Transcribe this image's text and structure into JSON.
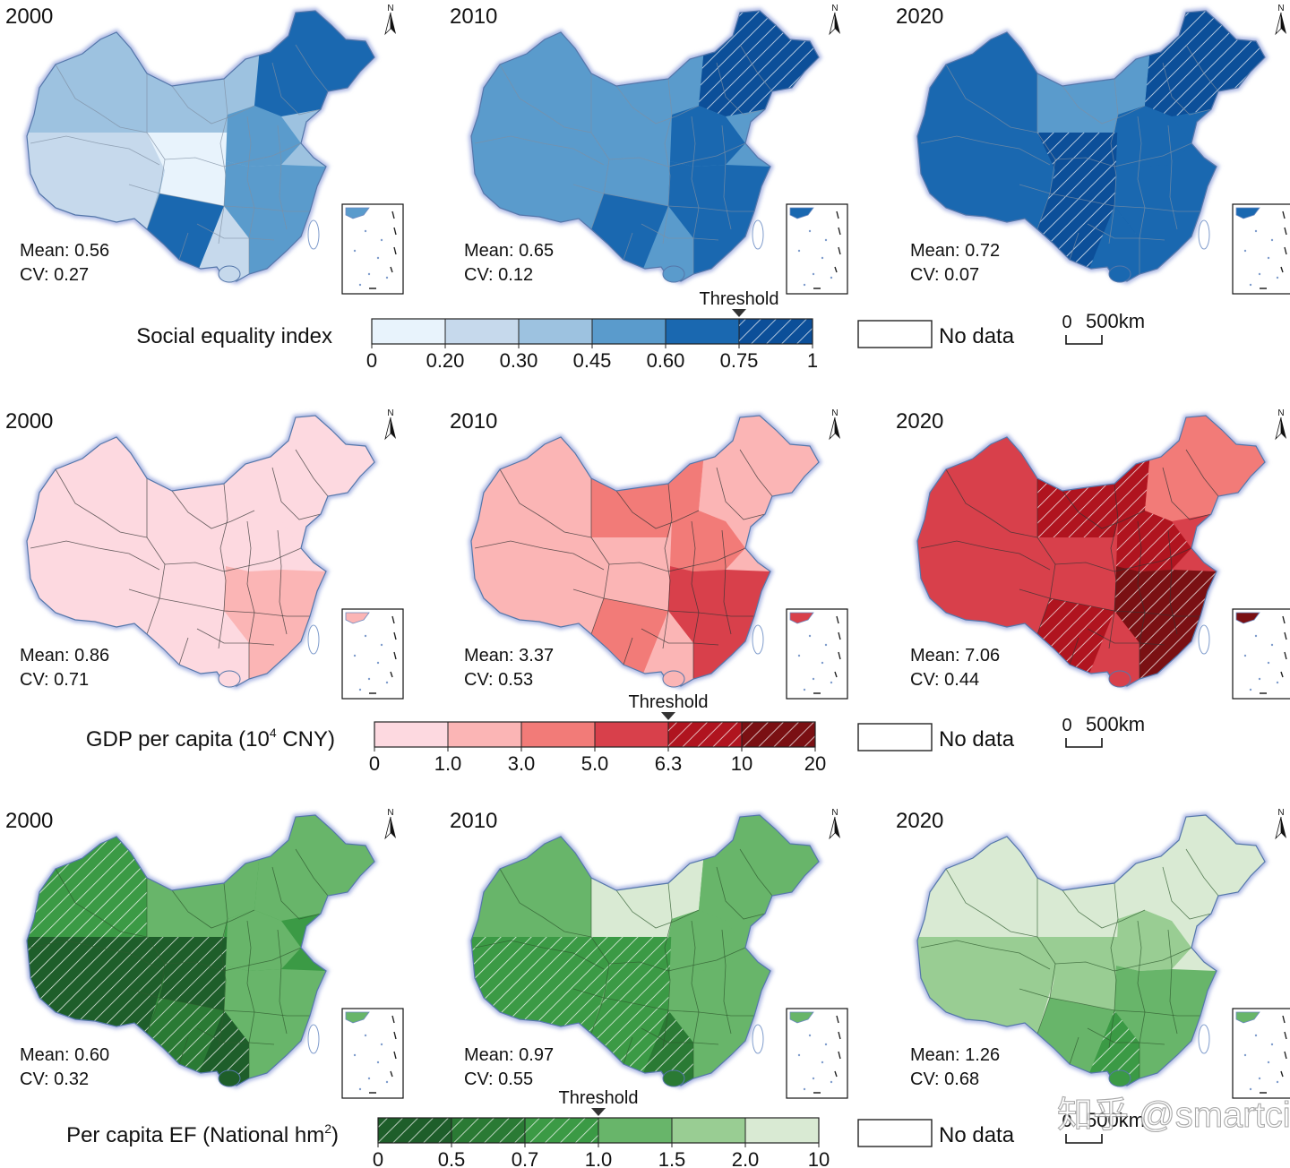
{
  "rows": [
    {
      "id": "social",
      "palette": [
        "#e8f3fc",
        "#c6d9ec",
        "#9dc2e0",
        "#5a9bcc",
        "#1a68b0",
        "#0c4f99"
      ],
      "hatch_from": 5,
      "colors": {
        "outline": "#5577aa",
        "inner": "#7f8fa3"
      },
      "panels": [
        {
          "year": "2000",
          "mean": "Mean: 0.56",
          "cv": "CV: 0.27",
          "fill": [
            2,
            1,
            0,
            2,
            3,
            4,
            4,
            3,
            1
          ]
        },
        {
          "year": "2010",
          "mean": "Mean: 0.65",
          "cv": "CV: 0.12",
          "fill": [
            3,
            3,
            3,
            3,
            4,
            5,
            4,
            4,
            3
          ]
        },
        {
          "year": "2020",
          "mean": "Mean: 0.72",
          "cv": "CV: 0.07",
          "fill": [
            4,
            4,
            5,
            3,
            4,
            5,
            5,
            4,
            4
          ]
        }
      ],
      "legend": {
        "title": "Social equality index",
        "ticks": [
          "0",
          "0.20",
          "0.30",
          "0.45",
          "0.60",
          "0.75",
          "1"
        ],
        "threshold_label": "Threshold",
        "threshold_index": 5
      },
      "no_data": "No data",
      "scale_zero": "0",
      "scale_label": "500km"
    },
    {
      "id": "gdp",
      "palette": [
        "#fdd9e0",
        "#fbb5b5",
        "#f27b78",
        "#d8404b",
        "#b0141f",
        "#7a1013"
      ],
      "hatch_from": 4,
      "colors": {
        "outline": "#5577aa",
        "inner": "#333333"
      },
      "panels": [
        {
          "year": "2000",
          "mean": "Mean: 0.86",
          "cv": "CV: 0.71",
          "fill": [
            0,
            0,
            0,
            0,
            0,
            0,
            0,
            1,
            0
          ]
        },
        {
          "year": "2010",
          "mean": "Mean: 3.37",
          "cv": "CV: 0.53",
          "fill": [
            1,
            1,
            1,
            2,
            2,
            1,
            2,
            3,
            1
          ]
        },
        {
          "year": "2020",
          "mean": "Mean: 7.06",
          "cv": "CV: 0.44",
          "fill": [
            3,
            3,
            3,
            4,
            4,
            2,
            4,
            5,
            3
          ]
        }
      ],
      "legend": {
        "title": "GDP per capita (10",
        "title_sup": "4",
        "title_end": " CNY)",
        "ticks": [
          "0",
          "1.0",
          "3.0",
          "5.0",
          "6.3",
          "10",
          "20"
        ],
        "threshold_label": "Threshold",
        "threshold_index": 4
      },
      "no_data": "No data",
      "scale_zero": "0",
      "scale_label": "500km"
    },
    {
      "id": "ef",
      "palette": [
        "#1e5e2a",
        "#2a7a34",
        "#3b9a45",
        "#68b56a",
        "#99cd93",
        "#d9ead3"
      ],
      "hatch_to": 2,
      "colors": {
        "outline": "#5577aa",
        "inner": "#2f5b2f"
      },
      "panels": [
        {
          "year": "2000",
          "mean": "Mean: 0.60",
          "cv": "CV: 0.32",
          "fill": [
            2,
            0,
            0,
            3,
            3,
            3,
            1,
            3,
            0
          ]
        },
        {
          "year": "2010",
          "mean": "Mean: 0.97",
          "cv": "CV: 0.55",
          "fill": [
            3,
            2,
            2,
            5,
            3,
            3,
            2,
            3,
            1
          ]
        },
        {
          "year": "2020",
          "mean": "Mean: 1.26",
          "cv": "CV: 0.68",
          "fill": [
            5,
            4,
            4,
            5,
            4,
            5,
            3,
            3,
            2
          ]
        }
      ],
      "legend": {
        "title": "Per capita EF (National hm",
        "title_sup": "2",
        "title_end": ")",
        "ticks": [
          "0",
          "0.5",
          "0.7",
          "1.0",
          "1.5",
          "2.0",
          "10"
        ],
        "threshold_label": "Threshold",
        "threshold_index": 3
      },
      "no_data": "No data",
      "scale_zero": "0",
      "scale_label": "500km"
    }
  ],
  "north_label": "N",
  "watermark": "知乎 @smartcity"
}
